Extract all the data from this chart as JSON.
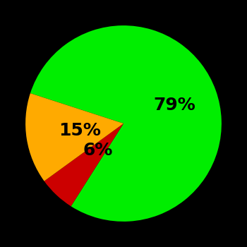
{
  "slices": [
    79,
    6,
    15
  ],
  "colors": [
    "#00ee00",
    "#cc0000",
    "#ffaa00"
  ],
  "labels": [
    "79%",
    "6%",
    "15%"
  ],
  "background_color": "#000000",
  "label_fontsize": 18,
  "label_color": "#000000",
  "startangle": 162,
  "label_radii": [
    0.55,
    0.38,
    0.45
  ]
}
